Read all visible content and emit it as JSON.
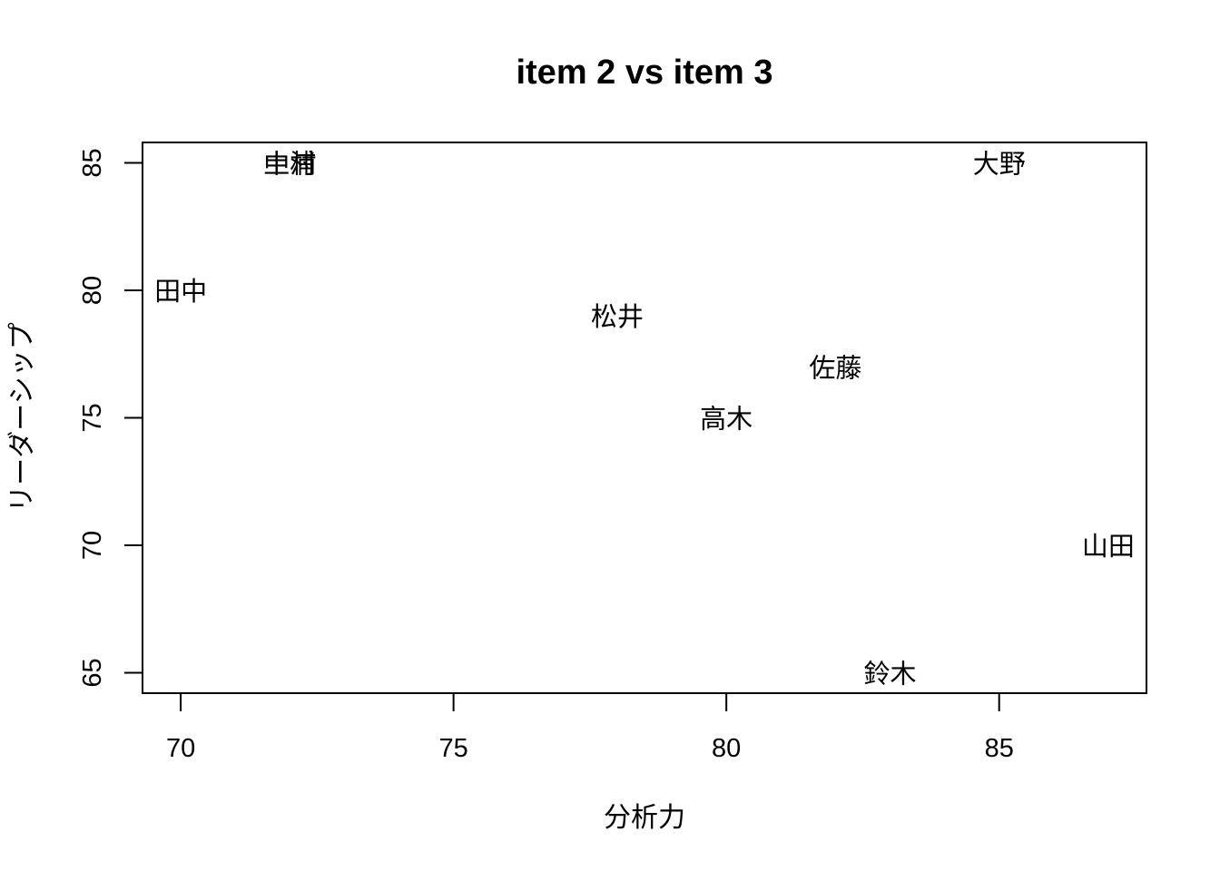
{
  "chart_data": {
    "type": "scatter",
    "title": "item 2 vs item 3",
    "xlabel": "分析力",
    "ylabel": "リーダーシップ",
    "xlim": [
      69.3,
      87.7
    ],
    "ylim": [
      64.2,
      85.8
    ],
    "xticks": [
      70,
      75,
      80,
      85
    ],
    "yticks": [
      65,
      70,
      75,
      80,
      85
    ],
    "grid": false,
    "legend": "none",
    "marker": "text-label",
    "points": [
      {
        "label": "田中",
        "x": 70,
        "y": 80
      },
      {
        "label": "中村",
        "x": 72,
        "y": 85
      },
      {
        "label": "土浦",
        "x": 72,
        "y": 85
      },
      {
        "label": "大野",
        "x": 85,
        "y": 85
      },
      {
        "label": "松井",
        "x": 78,
        "y": 79
      },
      {
        "label": "佐藤",
        "x": 82,
        "y": 77
      },
      {
        "label": "高木",
        "x": 80,
        "y": 75
      },
      {
        "label": "山田",
        "x": 87,
        "y": 70
      },
      {
        "label": "鈴木",
        "x": 83,
        "y": 65
      }
    ]
  }
}
